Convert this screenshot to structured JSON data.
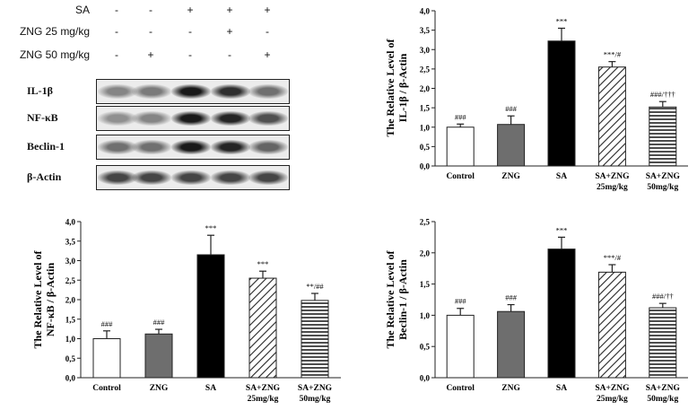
{
  "blot": {
    "treatments": [
      {
        "label": "SA",
        "signs": [
          "-",
          "-",
          "+",
          "+",
          "+"
        ]
      },
      {
        "label": "ZNG 25 mg/kg",
        "signs": [
          "-",
          "-",
          "-",
          "+",
          "-"
        ]
      },
      {
        "label": "ZNG 50 mg/kg",
        "signs": [
          "-",
          "+",
          "-",
          "-",
          "+"
        ]
      }
    ],
    "rows": [
      {
        "label": "IL-1β",
        "band_darkness": [
          0.45,
          0.5,
          0.95,
          0.85,
          0.55
        ]
      },
      {
        "label": "NF-κB",
        "band_darkness": [
          0.4,
          0.45,
          0.95,
          0.9,
          0.7
        ]
      },
      {
        "label": "Beclin-1",
        "band_darkness": [
          0.55,
          0.55,
          0.95,
          0.9,
          0.6
        ]
      },
      {
        "label": "β-Actin",
        "band_darkness": [
          0.75,
          0.75,
          0.75,
          0.75,
          0.75
        ]
      }
    ]
  },
  "chart_data": [
    {
      "type": "bar",
      "id": "il1b",
      "ylabel": "The Relative Level of IL-1β / β-Actin",
      "ylim": [
        0,
        4.0
      ],
      "ticks": [
        "0,0",
        "0,5",
        "1,0",
        "1,5",
        "2,0",
        "2,5",
        "3,0",
        "3,5",
        "4,0"
      ],
      "tick_step": 0.5,
      "categories": [
        "Control",
        "ZNG",
        "SA",
        "SA+ZNG 25mg/kg",
        "SA+ZNG 50mg/kg"
      ],
      "values": [
        1.0,
        1.07,
        3.22,
        2.55,
        1.52
      ],
      "errors": [
        0.08,
        0.22,
        0.33,
        0.14,
        0.14
      ],
      "annotations": [
        "###",
        "###",
        "***",
        "***/#",
        "###/†††"
      ]
    },
    {
      "type": "bar",
      "id": "nfkb",
      "ylabel": "The Relative Level of NF-κB / β-Actin",
      "ylim": [
        0,
        4.0
      ],
      "ticks": [
        "0,0",
        "0,5",
        "1,0",
        "1,5",
        "2,0",
        "2,5",
        "3,0",
        "3,5",
        "4,0"
      ],
      "tick_step": 0.5,
      "categories": [
        "Control",
        "ZNG",
        "SA",
        "SA+ZNG 25mg/kg",
        "SA+ZNG 50mg/kg"
      ],
      "values": [
        1.0,
        1.12,
        3.15,
        2.55,
        1.98
      ],
      "errors": [
        0.2,
        0.12,
        0.5,
        0.18,
        0.18
      ],
      "annotations": [
        "###",
        "###",
        "***",
        "***",
        "**/##"
      ]
    },
    {
      "type": "bar",
      "id": "beclin",
      "ylabel": "The Relative Level of Beclin-1 / β-Actin",
      "ylim": [
        0,
        2.5
      ],
      "ticks": [
        "0,0",
        "0,5",
        "1,0",
        "1,5",
        "2,0",
        "2,5"
      ],
      "tick_step": 0.5,
      "categories": [
        "Control",
        "ZNG",
        "SA",
        "SA+ZNG 25mg/kg",
        "SA+ZNG 50mg/kg"
      ],
      "values": [
        1.0,
        1.06,
        2.06,
        1.69,
        1.12
      ],
      "errors": [
        0.11,
        0.11,
        0.19,
        0.12,
        0.07
      ],
      "annotations": [
        "###",
        "###",
        "***",
        "***/#",
        "###/††"
      ]
    }
  ]
}
